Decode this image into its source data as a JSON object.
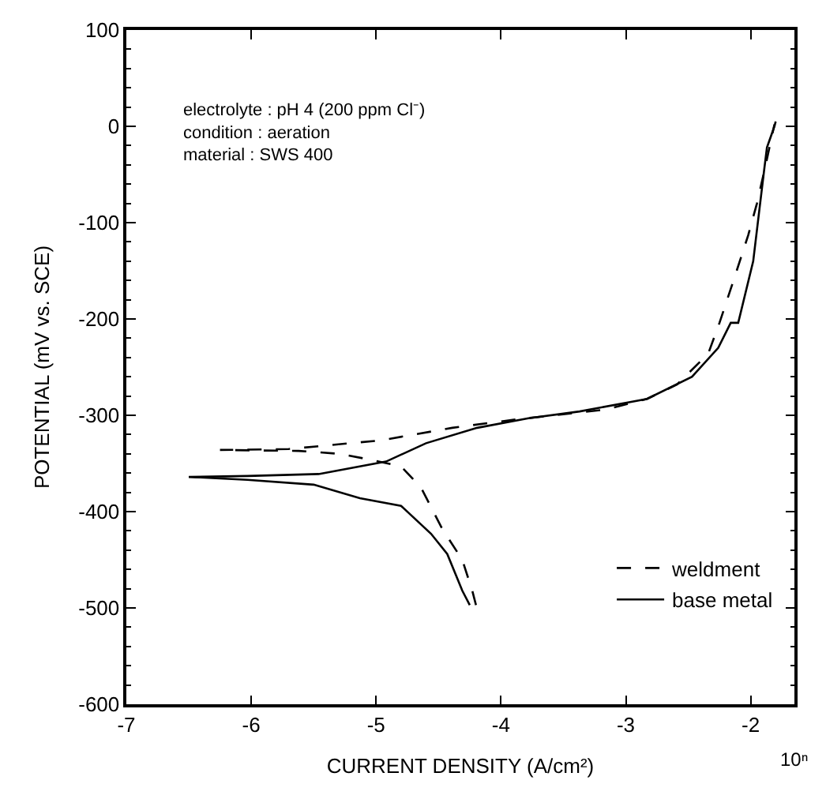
{
  "chart_data": {
    "type": "line",
    "xlabel": "CURRENT DENSITY (A/cm²)",
    "ylabel": "POTENTIAL (mV vs. SCE)",
    "xlim": [
      -7,
      -1.65
    ],
    "xticks": [
      -7,
      -6,
      -5,
      -4,
      -3,
      -2
    ],
    "ylim": [
      -600,
      100
    ],
    "yticks": [
      -600,
      -500,
      -400,
      -300,
      -200,
      -100,
      0,
      100
    ],
    "legend": "bottom right",
    "series": [
      {
        "name": "weldment",
        "color": "#000000",
        "line_style": "dashed",
        "x": [
          -4.2,
          -4.23,
          -4.31,
          -4.47,
          -4.64,
          -4.8,
          -5.09,
          -5.29,
          -5.62,
          -6.25,
          -5.7,
          -4.96,
          -4.39,
          -3.86,
          -3.57,
          -3.16,
          -2.83,
          -2.59,
          -2.34,
          -2.25,
          -2.14,
          -2.02,
          -1.95,
          -1.88,
          -1.81
        ],
        "values": [
          -497,
          -482,
          -450,
          -418,
          -375,
          -353,
          -345,
          -340,
          -337,
          -336,
          -335,
          -326,
          -313,
          -304,
          -300,
          -294,
          -283,
          -268,
          -236,
          -204,
          -161,
          -113,
          -80,
          -40,
          2
        ]
      },
      {
        "name": "base metal",
        "color": "#000000",
        "line_style": "solid",
        "x": [
          -4.25,
          -4.31,
          -4.43,
          -4.56,
          -4.8,
          -5.13,
          -5.5,
          -6.03,
          -6.5,
          -6.03,
          -5.46,
          -4.92,
          -4.6,
          -4.19,
          -3.78,
          -3.37,
          -2.83,
          -2.47,
          -2.26,
          -2.16,
          -2.1,
          -1.98,
          -1.93,
          -1.89,
          -1.87,
          -1.81,
          -1.8
        ],
        "values": [
          -497,
          -482,
          -444,
          -423,
          -394,
          -386,
          -372,
          -367,
          -364,
          -363,
          -361,
          -348,
          -329,
          -313,
          -303,
          -296,
          -283,
          -260,
          -230,
          -204,
          -204,
          -140,
          -86,
          -43,
          -22,
          0,
          5
        ]
      }
    ],
    "annotations": [
      "electrolyte : pH 4 (200 ppm Cl⁻)\ncondition : aeration\nmaterial : SWS 400",
      "10ⁿ"
    ]
  }
}
